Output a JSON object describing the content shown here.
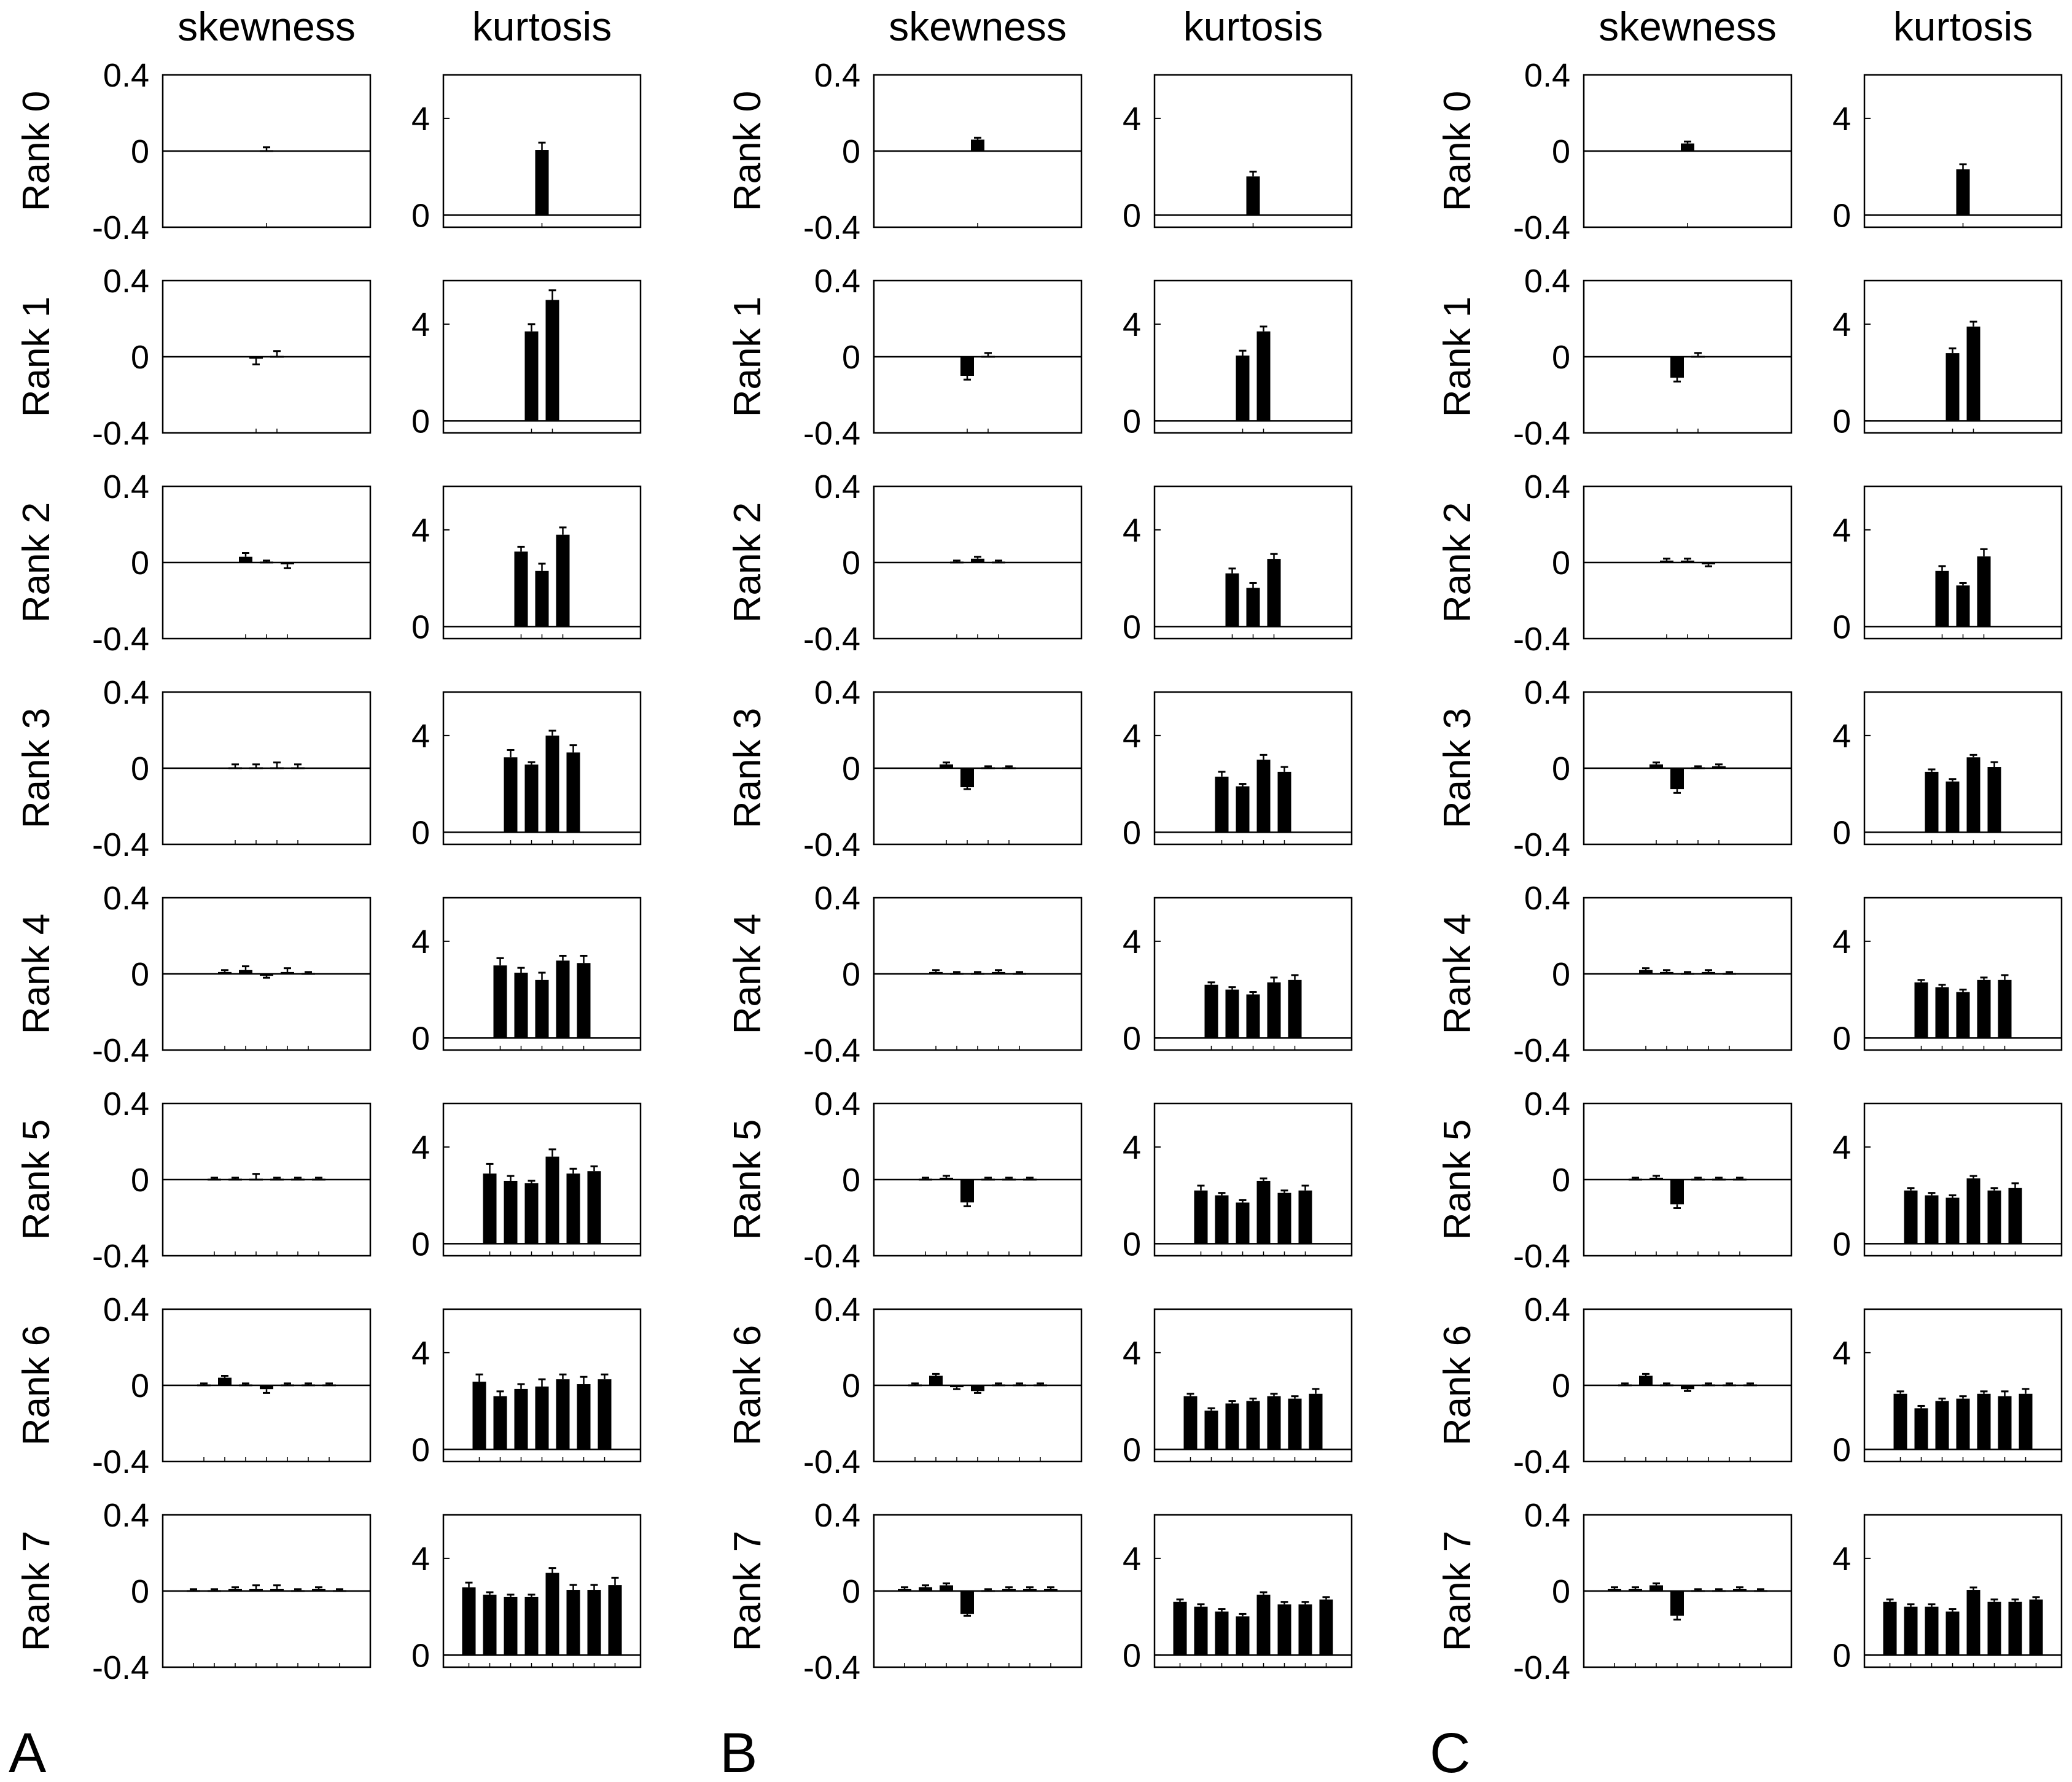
{
  "figure": {
    "panel_letters": [
      "A",
      "B",
      "C"
    ],
    "column_titles": [
      "skewness",
      "kurtosis"
    ],
    "row_labels": [
      "Rank 0",
      "Rank 1",
      "Rank 2",
      "Rank 3",
      "Rank 4",
      "Rank 5",
      "Rank 6",
      "Rank 7"
    ],
    "colors": {
      "bar": "#000000",
      "axis": "#000000",
      "background": "#ffffff"
    }
  },
  "chart_data": {
    "type": "bar",
    "description": "Grid of 3 panels (A, B, C) x 8 rows (Rank 0-7) x 2 metrics (skewness, kurtosis); rank r has r+1 bars with error bars",
    "skewness": {
      "ylim": [
        -0.4,
        0.4
      ],
      "yticks": [
        0.4,
        0,
        -0.4
      ],
      "yticklabels": [
        "0.4",
        "0",
        "-0.4"
      ]
    },
    "kurtosis": {
      "ylim": [
        -0.5,
        5.8
      ],
      "yticks": [
        4,
        0
      ],
      "yticklabels": [
        "4",
        "0"
      ]
    },
    "panels": [
      {
        "label": "A",
        "skewness": [
          [
            0.0
          ],
          [
            -0.01,
            0.0
          ],
          [
            0.03,
            0.0,
            -0.01
          ],
          [
            0.0,
            0.0,
            0.0,
            0.0
          ],
          [
            0.01,
            0.02,
            -0.01,
            0.01,
            0.0
          ],
          [
            0.0,
            0.0,
            0.0,
            0.0,
            0.0,
            0.0
          ],
          [
            0.0,
            0.04,
            0.0,
            -0.02,
            0.0,
            0.0,
            0.0
          ],
          [
            0.0,
            0.0,
            0.01,
            0.01,
            0.01,
            0.0,
            0.01,
            0.0
          ]
        ],
        "skewness_err": [
          [
            0.02
          ],
          [
            0.03,
            0.03
          ],
          [
            0.02,
            0.01,
            0.02
          ],
          [
            0.02,
            0.02,
            0.03,
            0.02
          ],
          [
            0.01,
            0.02,
            0.01,
            0.02,
            0.01
          ],
          [
            0.01,
            0.01,
            0.03,
            0.01,
            0.01,
            0.01
          ],
          [
            0.01,
            0.01,
            0.01,
            0.02,
            0.01,
            0.01,
            0.01
          ],
          [
            0.01,
            0.01,
            0.01,
            0.02,
            0.02,
            0.01,
            0.01,
            0.01
          ]
        ],
        "kurtosis": [
          [
            2.7
          ],
          [
            3.7,
            5.0
          ],
          [
            3.1,
            2.3,
            3.8
          ],
          [
            3.1,
            2.8,
            4.0,
            3.3
          ],
          [
            3.0,
            2.7,
            2.4,
            3.2,
            3.1
          ],
          [
            2.9,
            2.6,
            2.5,
            3.6,
            2.9,
            3.0
          ],
          [
            2.8,
            2.2,
            2.5,
            2.6,
            2.9,
            2.7,
            2.9
          ],
          [
            2.8,
            2.5,
            2.4,
            2.4,
            3.4,
            2.7,
            2.7,
            2.9
          ]
        ],
        "kurtosis_err": [
          [
            0.3
          ],
          [
            0.3,
            0.4
          ],
          [
            0.2,
            0.3,
            0.3
          ],
          [
            0.3,
            0.1,
            0.2,
            0.3
          ],
          [
            0.3,
            0.2,
            0.3,
            0.2,
            0.3
          ],
          [
            0.4,
            0.2,
            0.1,
            0.3,
            0.2,
            0.2
          ],
          [
            0.3,
            0.2,
            0.2,
            0.3,
            0.2,
            0.3,
            0.2
          ],
          [
            0.2,
            0.1,
            0.1,
            0.1,
            0.2,
            0.2,
            0.2,
            0.3
          ]
        ]
      },
      {
        "label": "B",
        "skewness": [
          [
            0.06
          ],
          [
            -0.1,
            0.0
          ],
          [
            0.0,
            0.02,
            0.0
          ],
          [
            0.02,
            -0.1,
            0.0,
            0.0
          ],
          [
            0.01,
            0.0,
            0.0,
            0.01,
            0.0
          ],
          [
            0.0,
            0.01,
            -0.12,
            0.0,
            0.0,
            0.0
          ],
          [
            0.0,
            0.05,
            -0.01,
            -0.03,
            0.0,
            0.0,
            0.0
          ],
          [
            0.01,
            0.02,
            0.03,
            -0.12,
            0.0,
            0.01,
            0.01,
            0.01
          ]
        ],
        "skewness_err": [
          [
            0.01
          ],
          [
            0.02,
            0.02
          ],
          [
            0.01,
            0.01,
            0.01
          ],
          [
            0.01,
            0.01,
            0.01,
            0.01
          ],
          [
            0.01,
            0.01,
            0.01,
            0.01,
            0.01
          ],
          [
            0.01,
            0.01,
            0.02,
            0.01,
            0.01,
            0.01
          ],
          [
            0.01,
            0.01,
            0.01,
            0.01,
            0.01,
            0.01,
            0.01
          ],
          [
            0.01,
            0.01,
            0.01,
            0.01,
            0.01,
            0.01,
            0.01,
            0.01
          ]
        ],
        "kurtosis": [
          [
            1.6
          ],
          [
            2.7,
            3.7
          ],
          [
            2.2,
            1.6,
            2.8
          ],
          [
            2.3,
            1.9,
            3.0,
            2.5
          ],
          [
            2.2,
            2.0,
            1.8,
            2.3,
            2.4
          ],
          [
            2.2,
            2.0,
            1.7,
            2.6,
            2.1,
            2.2
          ],
          [
            2.2,
            1.6,
            1.9,
            2.0,
            2.2,
            2.1,
            2.3
          ],
          [
            2.2,
            2.0,
            1.8,
            1.6,
            2.5,
            2.1,
            2.1,
            2.3
          ]
        ],
        "kurtosis_err": [
          [
            0.2
          ],
          [
            0.2,
            0.2
          ],
          [
            0.2,
            0.2,
            0.2
          ],
          [
            0.2,
            0.1,
            0.2,
            0.2
          ],
          [
            0.1,
            0.1,
            0.1,
            0.2,
            0.2
          ],
          [
            0.2,
            0.1,
            0.1,
            0.1,
            0.1,
            0.2
          ],
          [
            0.1,
            0.1,
            0.1,
            0.1,
            0.1,
            0.1,
            0.2
          ],
          [
            0.1,
            0.1,
            0.1,
            0.1,
            0.1,
            0.1,
            0.1,
            0.1
          ]
        ]
      },
      {
        "label": "C",
        "skewness": [
          [
            0.04
          ],
          [
            -0.11,
            0.0
          ],
          [
            0.01,
            0.01,
            -0.01
          ],
          [
            0.02,
            -0.11,
            0.0,
            0.01
          ],
          [
            0.02,
            0.01,
            0.0,
            0.01,
            0.0
          ],
          [
            0.0,
            0.01,
            -0.13,
            0.0,
            0.0,
            0.0
          ],
          [
            0.0,
            0.05,
            0.0,
            -0.02,
            0.0,
            0.0,
            0.0
          ],
          [
            0.01,
            0.01,
            0.03,
            -0.13,
            0.0,
            0.0,
            0.01,
            0.0
          ]
        ],
        "skewness_err": [
          [
            0.01
          ],
          [
            0.02,
            0.02
          ],
          [
            0.01,
            0.01,
            0.01
          ],
          [
            0.01,
            0.02,
            0.01,
            0.01
          ],
          [
            0.01,
            0.01,
            0.01,
            0.01,
            0.01
          ],
          [
            0.01,
            0.01,
            0.02,
            0.01,
            0.01,
            0.01
          ],
          [
            0.01,
            0.01,
            0.01,
            0.01,
            0.01,
            0.01,
            0.01
          ],
          [
            0.01,
            0.01,
            0.01,
            0.02,
            0.01,
            0.01,
            0.01,
            0.01
          ]
        ],
        "kurtosis": [
          [
            1.9
          ],
          [
            2.8,
            3.9
          ],
          [
            2.3,
            1.7,
            2.9
          ],
          [
            2.5,
            2.1,
            3.1,
            2.7
          ],
          [
            2.3,
            2.1,
            1.9,
            2.4,
            2.4
          ],
          [
            2.2,
            2.0,
            1.9,
            2.7,
            2.2,
            2.3
          ],
          [
            2.3,
            1.7,
            2.0,
            2.1,
            2.3,
            2.2,
            2.3
          ],
          [
            2.2,
            2.0,
            2.0,
            1.8,
            2.7,
            2.2,
            2.2,
            2.3
          ]
        ],
        "kurtosis_err": [
          [
            0.2
          ],
          [
            0.2,
            0.2
          ],
          [
            0.2,
            0.1,
            0.3
          ],
          [
            0.1,
            0.1,
            0.1,
            0.2
          ],
          [
            0.1,
            0.1,
            0.1,
            0.1,
            0.2
          ],
          [
            0.1,
            0.1,
            0.1,
            0.1,
            0.1,
            0.2
          ],
          [
            0.1,
            0.1,
            0.1,
            0.1,
            0.1,
            0.2,
            0.2
          ],
          [
            0.1,
            0.1,
            0.1,
            0.1,
            0.1,
            0.1,
            0.1,
            0.1
          ]
        ]
      }
    ]
  }
}
